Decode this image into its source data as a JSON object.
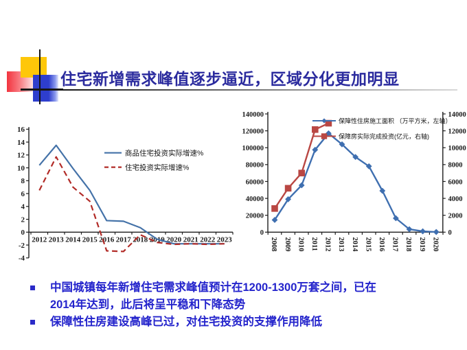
{
  "slide": {
    "title": "住宅新增需求峰值逐步逼近，区域分化更加明显",
    "bullets": [
      "中国城镇每年新增住宅需求峰值预计在1200-1300万套之间，已在2014年达到，此后将呈平稳和下降态势",
      "保障性住房建设高峰已过，对住宅投资的支撑作用降低"
    ],
    "colors": {
      "title_text": "#2b2b9e",
      "bullet_text": "#2424cc",
      "bullet_marker": "#2b2bc8",
      "decoration_yellow": "#fec709",
      "decoration_red": "#f2343f",
      "decoration_blue": "#2e3ecd"
    }
  },
  "chart_data": [
    {
      "type": "line",
      "title": "",
      "categories": [
        "2012",
        "2013",
        "2014",
        "2015",
        "2016",
        "2017",
        "2018",
        "2019",
        "2020",
        "2021",
        "2022",
        "2023"
      ],
      "series": [
        {
          "name": "商品住宅投资实际增速%",
          "color": "#4472a8",
          "dash": "solid",
          "values": [
            10.4,
            13.5,
            9.9,
            6.5,
            1.8,
            1.7,
            0.7,
            -1.1,
            -1.8,
            -1.8,
            -1.8,
            -1.8
          ]
        },
        {
          "name": "住宅投资实际增速%",
          "color": "#b22b27",
          "dash": "dashed",
          "values": [
            6.5,
            11.7,
            7.0,
            4.8,
            -2.9,
            -3.0,
            -0.4,
            -1.6,
            -1.9,
            -1.8,
            -1.9,
            -1.8
          ]
        }
      ],
      "xlabel": "",
      "ylabel": "",
      "ylim": [
        -4,
        16
      ],
      "ytick_step": 2,
      "grid": false,
      "legend_position": "inside-upper-right"
    },
    {
      "type": "line",
      "title": "",
      "categories": [
        "2008",
        "2009",
        "2010",
        "2011",
        "2012",
        "2013",
        "2014",
        "2015",
        "2016",
        "2017",
        "2018",
        "2019",
        "2020"
      ],
      "series": [
        {
          "name": "保障性住房施工面积 （万平方米，左轴）",
          "color": "#3f6fb0",
          "marker": "diamond",
          "axis": "left",
          "values": [
            14500,
            39000,
            55500,
            97500,
            117000,
            104000,
            89000,
            78000,
            49000,
            16500,
            3500,
            1000,
            200
          ]
        },
        {
          "name": "保障房实际完成投资(亿元，右轴)",
          "color": "#b94743",
          "marker": "square",
          "axis": "right",
          "values": [
            2800,
            5200,
            7000,
            12150,
            12900,
            null,
            null,
            null,
            null,
            null,
            null,
            null,
            null
          ]
        }
      ],
      "xlabel": "",
      "ylabel": "",
      "left_ylim": [
        0,
        140000
      ],
      "left_ytick_step": 20000,
      "right_ylim": [
        0,
        14000
      ],
      "right_ytick_step": 2000,
      "x_labels_rotated": true,
      "grid": false,
      "legend_position": "inside-top"
    }
  ]
}
